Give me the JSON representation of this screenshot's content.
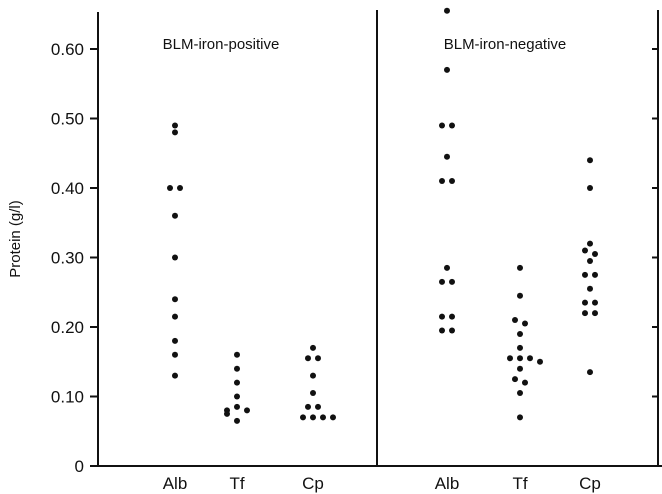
{
  "chart_data": {
    "type": "scatter",
    "ylabel": "Protein (g/l)",
    "ylim": [
      0,
      0.65
    ],
    "yticks": [
      0,
      0.1,
      0.2,
      0.3,
      0.4,
      0.5,
      0.6
    ],
    "ytick_labels": [
      "0",
      "0.10",
      "0.20",
      "0.30",
      "0.40",
      "0.50",
      "0.60"
    ],
    "panels": [
      {
        "title": "BLM-iron-positive",
        "categories": [
          "Alb",
          "Tf",
          "Cp"
        ],
        "groups": [
          {
            "category": "Alb",
            "values": [
              0.49,
              0.48,
              0.4,
              0.4,
              0.36,
              0.3,
              0.24,
              0.215,
              0.18,
              0.16,
              0.13
            ]
          },
          {
            "category": "Tf",
            "values": [
              0.16,
              0.14,
              0.12,
              0.1,
              0.085,
              0.08,
              0.08,
              0.075,
              0.065
            ]
          },
          {
            "category": "Cp",
            "values": [
              0.17,
              0.155,
              0.155,
              0.13,
              0.105,
              0.085,
              0.085,
              0.07,
              0.07,
              0.07,
              0.07
            ]
          }
        ]
      },
      {
        "title": "BLM-iron-negative",
        "categories": [
          "Alb",
          "Tf",
          "Cp"
        ],
        "groups": [
          {
            "category": "Alb",
            "values": [
              0.655,
              0.57,
              0.49,
              0.49,
              0.445,
              0.41,
              0.41,
              0.285,
              0.265,
              0.265,
              0.215,
              0.215,
              0.195,
              0.195
            ]
          },
          {
            "category": "Tf",
            "values": [
              0.285,
              0.245,
              0.21,
              0.205,
              0.19,
              0.17,
              0.155,
              0.155,
              0.155,
              0.15,
              0.14,
              0.125,
              0.12,
              0.105,
              0.07
            ]
          },
          {
            "category": "Cp",
            "values": [
              0.44,
              0.4,
              0.32,
              0.31,
              0.305,
              0.295,
              0.275,
              0.275,
              0.255,
              0.235,
              0.235,
              0.22,
              0.22,
              0.135
            ]
          }
        ]
      }
    ]
  }
}
